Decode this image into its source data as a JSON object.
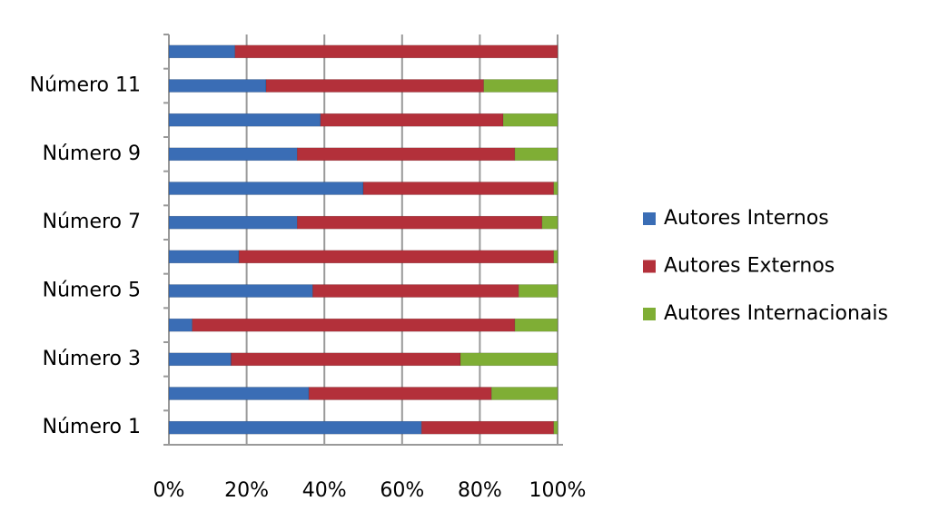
{
  "chart_data": {
    "type": "bar",
    "orientation": "horizontal",
    "stacked": "percent",
    "categories": [
      "Número 1",
      null,
      "Número 3",
      null,
      "Número 5",
      null,
      "Número 7",
      null,
      "Número 9",
      null,
      "Número 11",
      null
    ],
    "series": [
      {
        "name": "Autores Internos",
        "color": "#3a6db5",
        "values": [
          65,
          36,
          16,
          6,
          37,
          18,
          33,
          50,
          33,
          39,
          25,
          17
        ]
      },
      {
        "name": "Autores Externos",
        "color": "#b3303a",
        "values": [
          34,
          47,
          59,
          83,
          53,
          81,
          63,
          49,
          56,
          47,
          56,
          83
        ]
      },
      {
        "name": "Autores Internacionais",
        "color": "#7fae35",
        "values": [
          1,
          17,
          25,
          11,
          10,
          1,
          4,
          1,
          11,
          14,
          19,
          0
        ]
      }
    ],
    "xlim": [
      0,
      100
    ],
    "xticks": [
      {
        "value": 0,
        "label": "0%"
      },
      {
        "value": 20,
        "label": "20%"
      },
      {
        "value": 40,
        "label": "40%"
      },
      {
        "value": 60,
        "label": "60%"
      },
      {
        "value": 80,
        "label": "80%"
      },
      {
        "value": 100,
        "label": "100%"
      }
    ],
    "grid": true,
    "legend": "right"
  }
}
